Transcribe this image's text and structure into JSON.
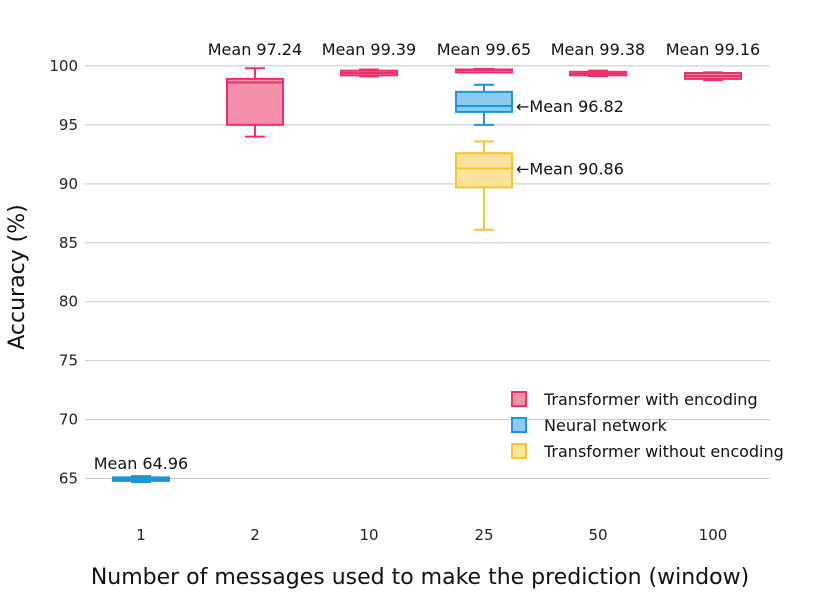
{
  "chart_data": {
    "type": "box",
    "xlabel": "Number of messages used to make the prediction (window)",
    "ylabel": "Accuracy (%)",
    "categories": [
      "1",
      "2",
      "10",
      "25",
      "50",
      "100"
    ],
    "ylim": [
      62.5,
      102.2
    ],
    "yticks": [
      65,
      70,
      75,
      80,
      85,
      90,
      95,
      100
    ],
    "grid": true,
    "legend_position": "bottom-right",
    "series": [
      {
        "name": "Transformer with encoding",
        "color": "#f0306a",
        "fill": "#f48fa9",
        "boxes": [
          {
            "category": "2",
            "min": 94.0,
            "q1": 95.0,
            "median": 98.6,
            "q3": 98.9,
            "max": 99.8,
            "mean_label": "Mean 97.24"
          },
          {
            "category": "10",
            "min": 99.1,
            "q1": 99.2,
            "median": 99.4,
            "q3": 99.6,
            "max": 99.7,
            "mean_label": "Mean 99.39"
          },
          {
            "category": "25",
            "min": 99.55,
            "q1": 99.6,
            "median": 99.65,
            "q3": 99.7,
            "max": 99.75,
            "mean_label": "Mean 99.65"
          },
          {
            "category": "50",
            "min": 99.15,
            "q1": 99.2,
            "median": 99.35,
            "q3": 99.5,
            "max": 99.6,
            "mean_label": "Mean 99.38"
          },
          {
            "category": "100",
            "min": 98.8,
            "q1": 98.9,
            "median": 99.15,
            "q3": 99.4,
            "max": 99.45,
            "mean_label": "Mean 99.16"
          }
        ]
      },
      {
        "name": "Neural network",
        "color": "#1a96dc",
        "fill": "#8ccbef",
        "boxes": [
          {
            "category": "1",
            "min": 64.7,
            "q1": 64.8,
            "median": 64.95,
            "q3": 65.1,
            "max": 65.2,
            "mean_label": "Mean 64.96"
          },
          {
            "category": "25",
            "min": 95.0,
            "q1": 96.1,
            "median": 96.6,
            "q3": 97.8,
            "max": 98.4,
            "mean_label": "←Mean 96.82"
          }
        ]
      },
      {
        "name": "Transformer without encoding",
        "color": "#f7c531",
        "fill": "#fde29a",
        "boxes": [
          {
            "category": "25",
            "min": 86.1,
            "q1": 89.7,
            "median": 91.3,
            "q3": 92.6,
            "max": 93.6,
            "mean_label": "←Mean 90.86"
          }
        ]
      }
    ]
  }
}
